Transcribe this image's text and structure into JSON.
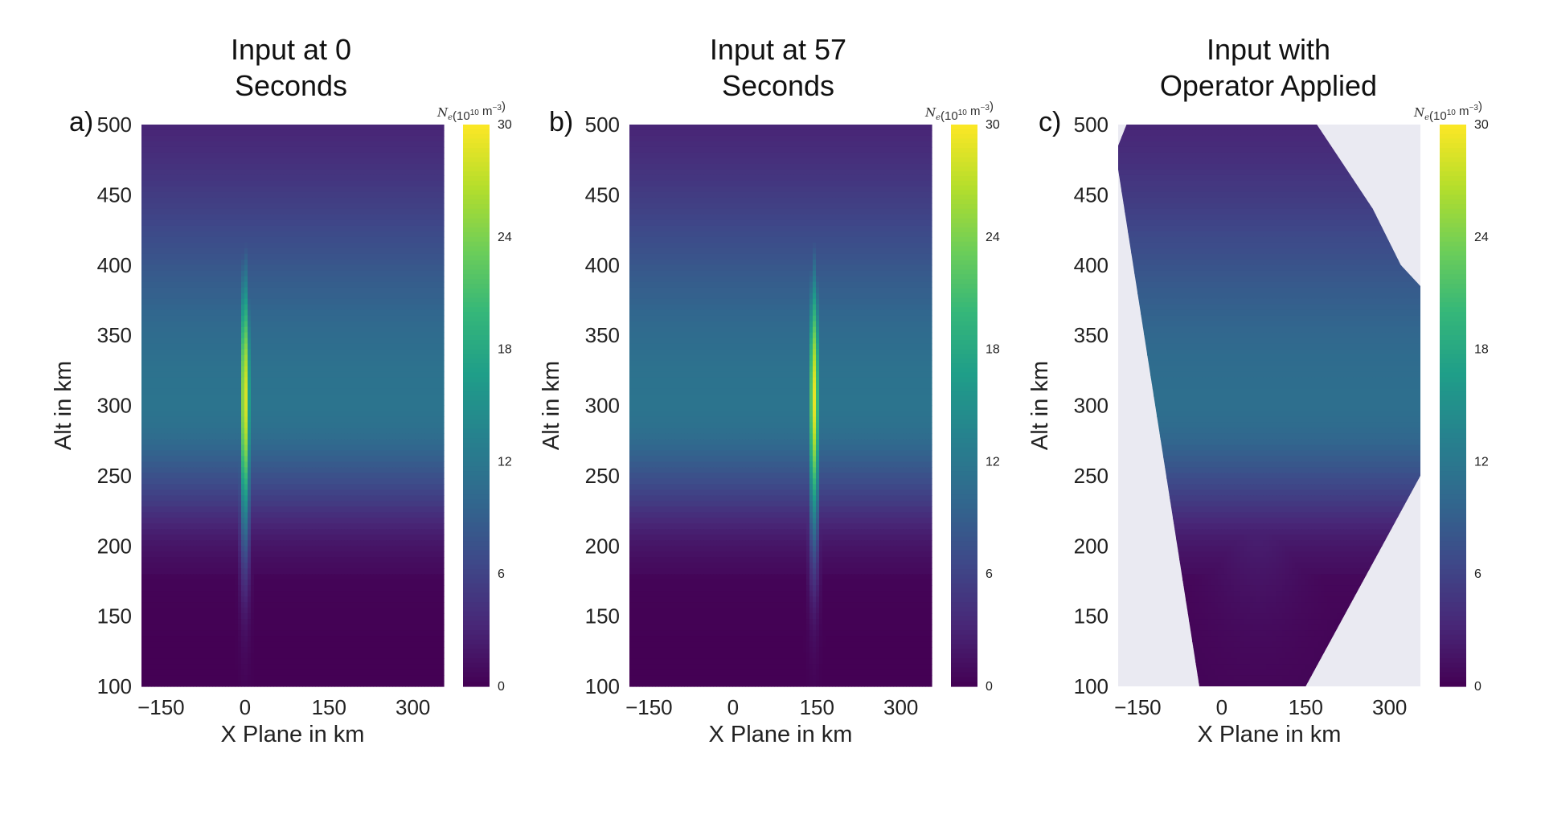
{
  "chart_data": [
    {
      "type": "heatmap",
      "panel_label": "a)",
      "title_lines": [
        "Input at 0",
        "Seconds"
      ],
      "xlabel": "X Plane in km",
      "ylabel": "Alt in km",
      "xlim": [
        -185,
        355
      ],
      "ylim": [
        100,
        500
      ],
      "x_ticks": [
        "−150",
        "0",
        "150",
        "300"
      ],
      "x_tick_values": [
        -150,
        0,
        150,
        300
      ],
      "y_ticks": [
        "100",
        "150",
        "200",
        "250",
        "300",
        "350",
        "400",
        "450",
        "500"
      ],
      "y_tick_values": [
        100,
        150,
        200,
        250,
        300,
        350,
        400,
        450,
        500
      ],
      "colorbar_label": "N_e(10^10 m^-3)",
      "colorbar_range": [
        0,
        30
      ],
      "colorbar_ticks": [
        "0",
        "6",
        "12",
        "18",
        "24",
        "30"
      ],
      "colorbar_tick_values": [
        0,
        6,
        12,
        18,
        24,
        30
      ],
      "background_profile": {
        "peak_alt_km": 300,
        "peak_value": 11,
        "scale_below_km": 75,
        "scale_above_km": 165,
        "floor_alt_km": 180
      },
      "enhancement": {
        "center_x_km": 0,
        "center_alt_km": 305,
        "half_width_km": 10,
        "alt_scale_km": 95,
        "peak_value": 29
      },
      "mask": null
    },
    {
      "type": "heatmap",
      "panel_label": "b)",
      "title_lines": [
        "Input at 57",
        "Seconds"
      ],
      "xlabel": "X Plane in km",
      "ylabel": "Alt in km",
      "xlim": [
        -185,
        355
      ],
      "ylim": [
        100,
        500
      ],
      "x_ticks": [
        "−150",
        "0",
        "150",
        "300"
      ],
      "x_tick_values": [
        -150,
        0,
        150,
        300
      ],
      "y_ticks": [
        "100",
        "150",
        "200",
        "250",
        "300",
        "350",
        "400",
        "450",
        "500"
      ],
      "y_tick_values": [
        100,
        150,
        200,
        250,
        300,
        350,
        400,
        450,
        500
      ],
      "colorbar_label": "N_e(10^10 m^-3)",
      "colorbar_range": [
        0,
        30
      ],
      "colorbar_ticks": [
        "0",
        "6",
        "12",
        "18",
        "24",
        "30"
      ],
      "colorbar_tick_values": [
        0,
        6,
        12,
        18,
        24,
        30
      ],
      "background_profile": {
        "peak_alt_km": 300,
        "peak_value": 11,
        "scale_below_km": 75,
        "scale_above_km": 165,
        "floor_alt_km": 180
      },
      "enhancement": {
        "center_x_km": 145,
        "center_alt_km": 305,
        "half_width_km": 10,
        "alt_scale_km": 95,
        "peak_value": 29
      },
      "mask": null
    },
    {
      "type": "heatmap",
      "panel_label": "c)",
      "title_lines": [
        "Input with",
        "Operator Applied"
      ],
      "xlabel": "X Plane in km",
      "ylabel": "Alt in km",
      "xlim": [
        -185,
        355
      ],
      "ylim": [
        100,
        500
      ],
      "x_ticks": [
        "−150",
        "0",
        "150",
        "300"
      ],
      "x_tick_values": [
        -150,
        0,
        150,
        300
      ],
      "y_ticks": [
        "100",
        "150",
        "200",
        "250",
        "300",
        "350",
        "400",
        "450",
        "500"
      ],
      "y_tick_values": [
        100,
        150,
        200,
        250,
        300,
        350,
        400,
        450,
        500
      ],
      "colorbar_label": "N_e(10^10 m^-3)",
      "colorbar_range": [
        0,
        30
      ],
      "colorbar_ticks": [
        "0",
        "6",
        "12",
        "18",
        "24",
        "30"
      ],
      "colorbar_tick_values": [
        0,
        6,
        12,
        18,
        24,
        30
      ],
      "background_profile": {
        "peak_alt_km": 300,
        "peak_value": 11,
        "scale_below_km": 75,
        "scale_above_km": 165,
        "floor_alt_km": 180
      },
      "enhancement": {
        "center_x_km": 65,
        "center_alt_km": 300,
        "half_width_km": 95,
        "alt_scale_km": 110,
        "peak_value": 5
      },
      "mask": {
        "fill_color": "#eaeaf2",
        "outline_km": [
          [
            -185,
            485
          ],
          [
            -170,
            500
          ],
          [
            170,
            500
          ],
          [
            220,
            470
          ],
          [
            270,
            440
          ],
          [
            320,
            400
          ],
          [
            355,
            385
          ],
          [
            355,
            250
          ],
          [
            150,
            100
          ],
          [
            -40,
            100
          ],
          [
            -185,
            468
          ]
        ]
      }
    }
  ],
  "colormap": [
    "#440154",
    "#482878",
    "#3e4989",
    "#31688e",
    "#26828e",
    "#1f9e89",
    "#35b779",
    "#6ece58",
    "#b5de2b",
    "#fde725"
  ],
  "outside_color": "#eaeaf2"
}
